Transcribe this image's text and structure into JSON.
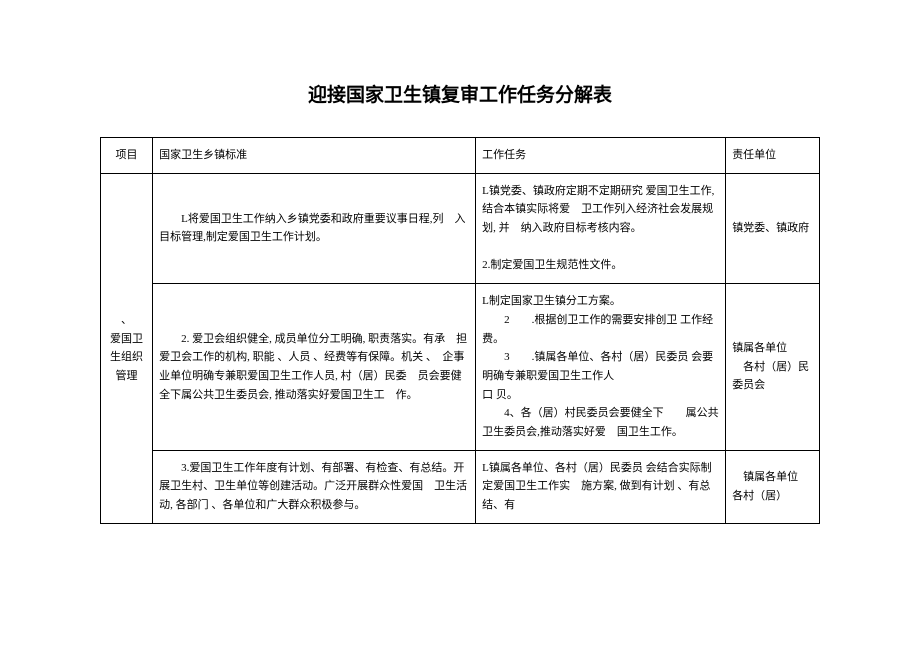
{
  "title": "迎接国家卫生镇复审工作任务分解表",
  "table": {
    "headers": {
      "project": "项目",
      "standard": "国家卫生乡镇标准",
      "task": "工作任务",
      "unit": "责任单位"
    },
    "projectLabel": "、\n爱国卫生组织管理",
    "rows": [
      {
        "standard": "　　L将爱国卫生工作纳入乡镇党委和政府重要议事日程,列　入目标管理,制定爱国卫生工作计划。",
        "task": "L镇党委、镇政府定期不定期研究 爱国卫生工作, 结合本镇实际将爱　卫工作列入经济社会发展规划, 并　纳入政府目标考核内容。\n\n2.制定爱国卫生规范性文件。",
        "unit": "镇党委、镇政府"
      },
      {
        "standard": "　　2. 爱卫会组织健全, 成员单位分工明确, 职责落实。有承　担爱卫会工作的机构, 职能 、人员 、经费等有保障。机关 、　企事业单位明确专兼职爱国卫生工作人员, 村（居）民委　员会要健全下属公共卫生委员会, 推动落实好爱国卫生工　作。",
        "task": "L制定国家卫生镇分工方案。\n　　2　　.根据创卫工作的需要安排创卫 工作经费。\n　　3　　.镇属各单位、各村（居）民委员 会要明确专兼职爱国卫生工作人\n口 贝。\n　　4、各（居）村民委员会要健全下　　属公共卫生委员会,推动落实好爱　国卫生工作。",
        "unit": "镇属各单位\n　各村（居）民委员会"
      },
      {
        "standard": "　　3.爱国卫生工作年度有计划、有部署、有检查、有总结。开展卫生村、卫生单位等创建活动。广泛开展群众性爱国　卫生活动, 各部门 、各单位和广大群众积极参与。",
        "task": "L镇属各单位、各村（居）民委员 会结合实际制定爱国卫生工作实　施方案, 做到有计划 、有总结、有",
        "unit": "　镇属各单位\n各村（居）"
      }
    ]
  },
  "styles": {
    "title_fontsize": 19,
    "body_fontsize": 11,
    "border_color": "#000000",
    "background_color": "#ffffff",
    "text_color": "#000000"
  }
}
